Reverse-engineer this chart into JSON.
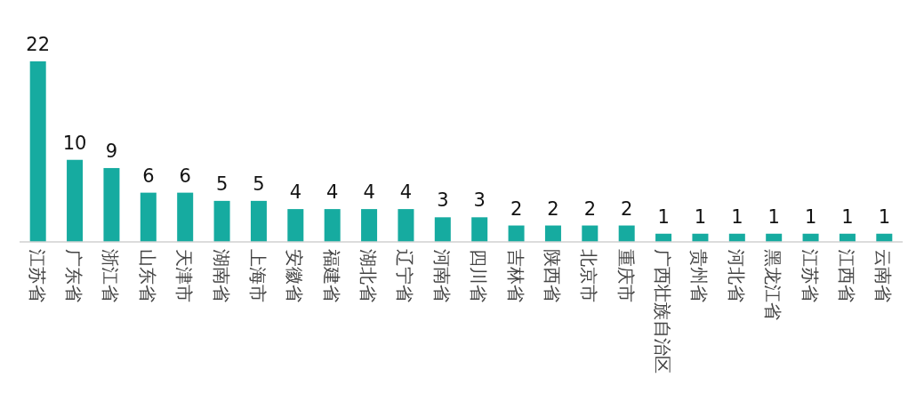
{
  "chart_data": {
    "type": "bar",
    "categories": [
      "江苏省",
      "广东省",
      "浙江省",
      "山东省",
      "天津市",
      "湖南省",
      "上海市",
      "安徽省",
      "福建省",
      "湖北省",
      "辽宁省",
      "河南省",
      "四川省",
      "吉林省",
      "陕西省",
      "北京市",
      "重庆市",
      "广西壮族自治区",
      "贵州省",
      "河北省",
      "黑龙江省",
      "江苏省",
      "江西省",
      "云南省"
    ],
    "values": [
      22,
      10,
      9,
      6,
      6,
      5,
      5,
      4,
      4,
      4,
      4,
      3,
      3,
      2,
      2,
      2,
      2,
      1,
      1,
      1,
      1,
      1,
      1,
      1
    ],
    "color": "#16aba0",
    "data_labels": true
  }
}
